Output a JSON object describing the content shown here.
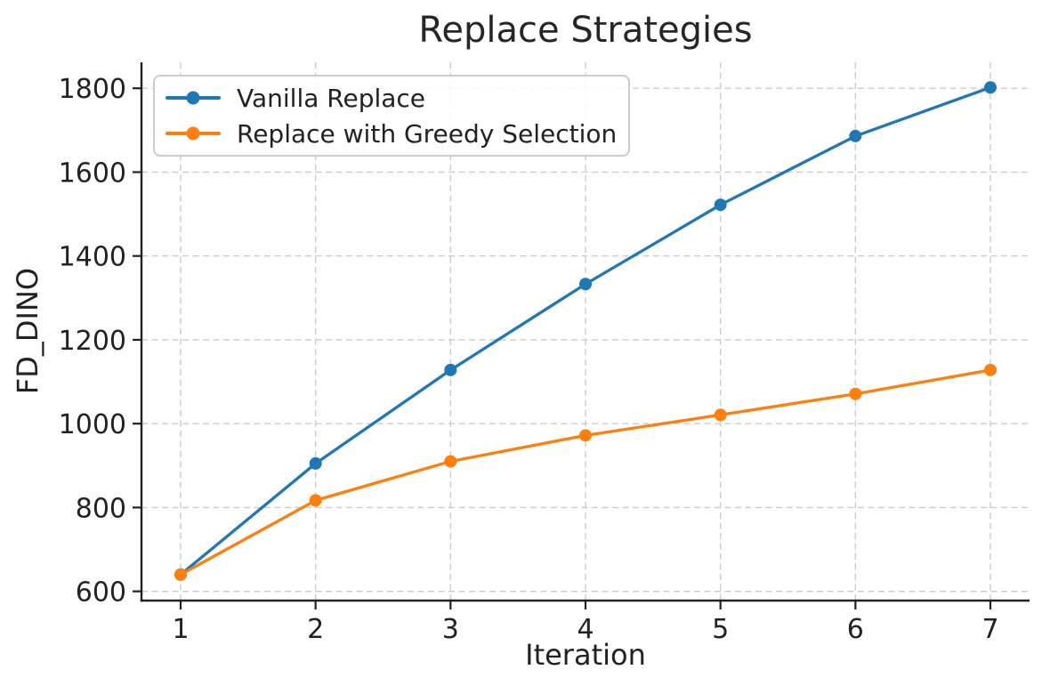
{
  "chart_data": {
    "type": "line",
    "title": "Replace Strategies",
    "xlabel": "Iteration",
    "ylabel": "FD_DINO",
    "x": [
      1,
      2,
      3,
      4,
      5,
      6,
      7
    ],
    "series": [
      {
        "name": "Vanilla Replace",
        "color": "#1f77b4",
        "marker": "circle",
        "values": [
          640,
          905,
          1128,
          1333,
          1522,
          1686,
          1802
        ]
      },
      {
        "name": "Replace with Greedy Selection",
        "color": "#ff7f0e",
        "marker": "circle",
        "values": [
          640,
          817,
          910,
          972,
          1021,
          1071,
          1128
        ]
      }
    ],
    "xticks": [
      1,
      2,
      3,
      4,
      5,
      6,
      7
    ],
    "yticks": [
      600,
      800,
      1000,
      1200,
      1400,
      1600,
      1800
    ],
    "xlim": [
      0.71,
      7.29
    ],
    "ylim": [
      578,
      1862
    ],
    "grid": true,
    "grid_style": "dashed",
    "legend_position": "upper left",
    "colors": {
      "text": "#222222",
      "grid": "#cccccc",
      "spine": "#222222",
      "background": "#ffffff"
    }
  }
}
